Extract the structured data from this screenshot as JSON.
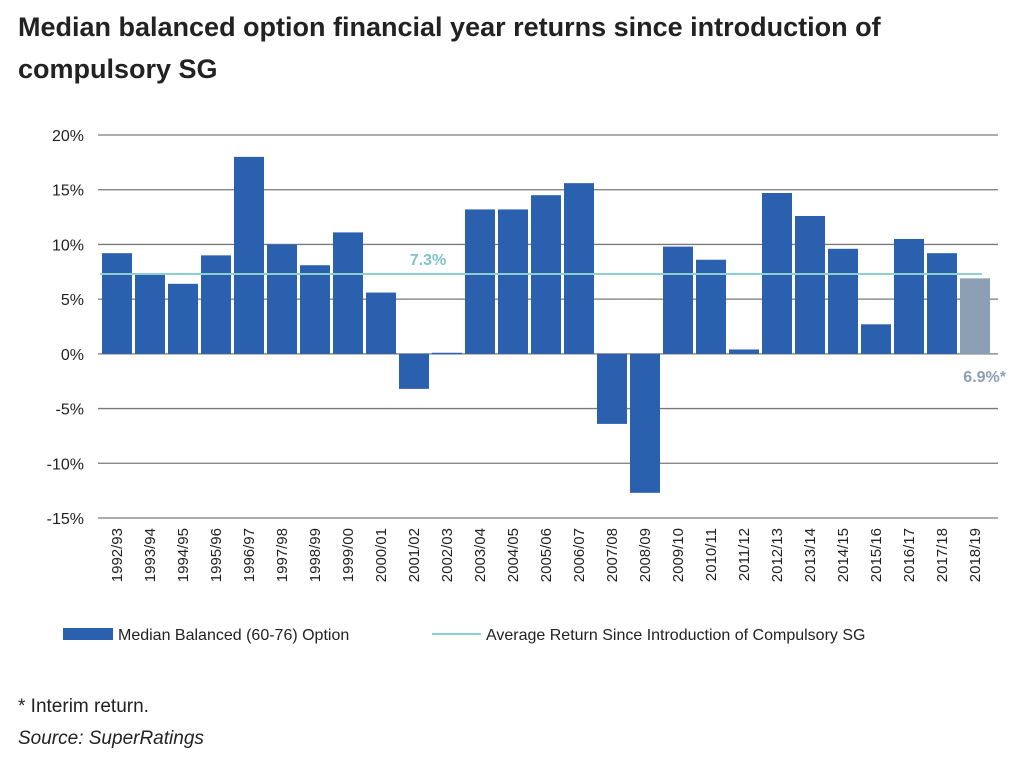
{
  "title": "Median balanced option financial year returns since introduction of compulsory SG",
  "footnote": "* Interim return.",
  "source": "Source: SuperRatings",
  "colors": {
    "bar": "#2a60ad",
    "interim_bar": "#8c9fb5",
    "average_line": "#8ecfd2",
    "average_label": "#7fc4c8",
    "interim_label": "#8c9fb5",
    "grid": "#7a7a7a",
    "text": "#222222"
  },
  "chart_data": {
    "type": "bar",
    "categories": [
      "1992/93",
      "1993/94",
      "1994/95",
      "1995/96",
      "1996/97",
      "1997/98",
      "1998/99",
      "1999/00",
      "2000/01",
      "2001/02",
      "2002/03",
      "2003/04",
      "2004/05",
      "2005/06",
      "2006/07",
      "2007/08",
      "2008/09",
      "2009/10",
      "2010/11",
      "2011/12",
      "2012/13",
      "2013/14",
      "2014/15",
      "2015/16",
      "2016/17",
      "2017/18",
      "2018/19"
    ],
    "series": [
      {
        "name": "Median Balanced (60-76) Option",
        "values": [
          9.2,
          7.3,
          6.4,
          9.0,
          18.0,
          10.0,
          8.1,
          11.1,
          5.6,
          -3.2,
          0.1,
          13.2,
          13.2,
          14.5,
          15.6,
          -6.4,
          -12.7,
          9.8,
          8.6,
          0.4,
          14.7,
          12.6,
          9.6,
          2.7,
          10.5,
          9.2,
          6.9
        ],
        "interim_index": 26
      },
      {
        "name": "Average Return Since Introduction of Compulsory SG",
        "type": "line",
        "value": 7.3
      }
    ],
    "ylim": [
      -15,
      20
    ],
    "yticks": [
      20,
      15,
      10,
      5,
      0,
      -5,
      -10,
      -15
    ],
    "ytick_labels": [
      "20%",
      "15%",
      "10%",
      "5%",
      "0%",
      "-5%",
      "-10%",
      "-15%"
    ],
    "annotations": {
      "average_label": "7.3%",
      "interim_label": "6.9%*"
    },
    "grid": true,
    "legend_position": "bottom"
  }
}
